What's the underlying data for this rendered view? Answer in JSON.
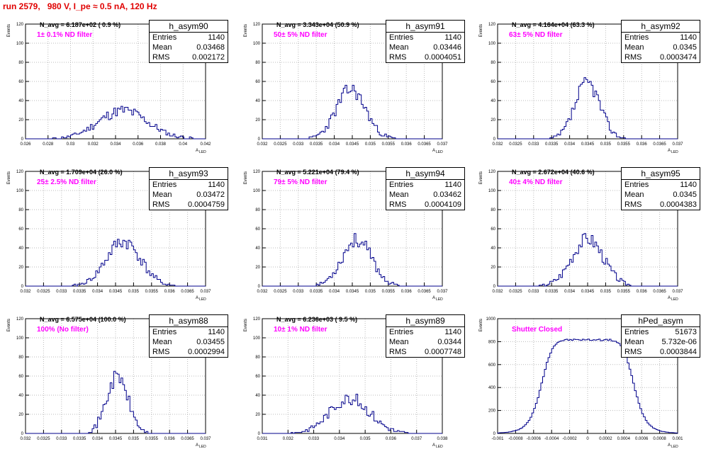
{
  "page_title": "run 2579,   980 V, I_pe ≈ 0.5 nA, 120 Hz",
  "colors": {
    "title": "#e00000",
    "histogram": "#00008b",
    "filter_text": "#ff00ff",
    "grid": "#bbbbbb"
  },
  "chart_data": [
    {
      "type": "histogram",
      "name": "h_asym90",
      "navg": "N_avg = 6.187e+02 ( 0.9 %)",
      "filter": "1± 0.1% ND filter",
      "entries": "1140",
      "mean": "0.03468",
      "rms": "0.002172",
      "xlim": [
        0.026,
        0.042
      ],
      "ylim": [
        0,
        120
      ],
      "xticks": [
        "0.026",
        "0.028",
        "0.03",
        "0.032",
        "0.034",
        "0.036",
        "0.038",
        "0.04",
        "0.042"
      ],
      "yticks": [
        "0",
        "20",
        "40",
        "60",
        "80",
        "100",
        "120"
      ],
      "ylabel": "Events",
      "xlabel": "A_LED",
      "grid": true,
      "mean_val": 0.03468,
      "rms_val": 0.002172,
      "peak": 38,
      "seed": 11
    },
    {
      "type": "histogram",
      "name": "h_asym91",
      "navg": "N_avg = 3.343e+04 (50.9 %)",
      "filter": "50± 5% ND filter",
      "entries": "1140",
      "mean": "0.03446",
      "rms": "0.0004051",
      "xlim": [
        0.032,
        0.037
      ],
      "ylim": [
        0,
        120
      ],
      "xticks": [
        "0.032",
        "0.0325",
        "0.033",
        "0.0335",
        "0.034",
        "0.0345",
        "0.035",
        "0.0355",
        "0.036",
        "0.0365",
        "0.037"
      ],
      "yticks": [
        "0",
        "20",
        "40",
        "60",
        "80",
        "100",
        "120"
      ],
      "ylabel": "Events",
      "xlabel": "A_LED",
      "grid": true,
      "mean_val": 0.03446,
      "rms_val": 0.0004051,
      "peak": 66,
      "seed": 23
    },
    {
      "type": "histogram",
      "name": "h_asym92",
      "navg": "N_avg = 4.164e+04 (63.3 %)",
      "filter": "63± 5% ND filter",
      "entries": "1140",
      "mean": "0.0345",
      "rms": "0.0003474",
      "xlim": [
        0.032,
        0.037
      ],
      "ylim": [
        0,
        120
      ],
      "xticks": [
        "0.032",
        "0.0325",
        "0.033",
        "0.0335",
        "0.034",
        "0.0345",
        "0.035",
        "0.0355",
        "0.036",
        "0.0365",
        "0.037"
      ],
      "yticks": [
        "0",
        "20",
        "40",
        "60",
        "80",
        "100",
        "120"
      ],
      "ylabel": "Events",
      "xlabel": "A_LED",
      "grid": true,
      "mean_val": 0.0345,
      "rms_val": 0.0003474,
      "peak": 75,
      "seed": 37
    },
    {
      "type": "histogram",
      "name": "h_asym93",
      "navg": "N_avg = 1.709e+04 (26.0 %)",
      "filter": "25± 2.5% ND filter",
      "entries": "1140",
      "mean": "0.03472",
      "rms": "0.0004759",
      "xlim": [
        0.032,
        0.037
      ],
      "ylim": [
        0,
        120
      ],
      "xticks": [
        "0.032",
        "0.0325",
        "0.033",
        "0.0335",
        "0.034",
        "0.0345",
        "0.035",
        "0.0355",
        "0.036",
        "0.0365",
        "0.037"
      ],
      "yticks": [
        "0",
        "20",
        "40",
        "60",
        "80",
        "100",
        "120"
      ],
      "ylabel": "Events",
      "xlabel": "A_LED",
      "grid": true,
      "mean_val": 0.03472,
      "rms_val": 0.0004759,
      "peak": 60,
      "seed": 41
    },
    {
      "type": "histogram",
      "name": "h_asym94",
      "navg": "N_avg = 5.221e+04 (79.4 %)",
      "filter": "79± 5% ND filter",
      "entries": "1140",
      "mean": "0.03462",
      "rms": "0.0004109",
      "xlim": [
        0.032,
        0.037
      ],
      "ylim": [
        0,
        120
      ],
      "xticks": [
        "0.032",
        "0.0325",
        "0.033",
        "0.0335",
        "0.034",
        "0.0345",
        "0.035",
        "0.0355",
        "0.036",
        "0.0365",
        "0.037"
      ],
      "yticks": [
        "0",
        "20",
        "40",
        "60",
        "80",
        "100",
        "120"
      ],
      "ylabel": "Events",
      "xlabel": "A_LED",
      "grid": true,
      "mean_val": 0.03462,
      "rms_val": 0.0004109,
      "peak": 62,
      "seed": 53
    },
    {
      "type": "histogram",
      "name": "h_asym95",
      "navg": "N_avg = 2.672e+04 (40.6 %)",
      "filter": "40± 4% ND filter",
      "entries": "1140",
      "mean": "0.0345",
      "rms": "0.0004383",
      "xlim": [
        0.032,
        0.037
      ],
      "ylim": [
        0,
        120
      ],
      "xticks": [
        "0.032",
        "0.0325",
        "0.033",
        "0.0335",
        "0.034",
        "0.0345",
        "0.035",
        "0.0355",
        "0.036",
        "0.0365",
        "0.037"
      ],
      "yticks": [
        "0",
        "20",
        "40",
        "60",
        "80",
        "100",
        "120"
      ],
      "ylabel": "Events",
      "xlabel": "A_LED",
      "grid": true,
      "mean_val": 0.0345,
      "rms_val": 0.0004383,
      "peak": 64,
      "seed": 67
    },
    {
      "type": "histogram",
      "name": "h_asym88",
      "navg": "N_avg = 6.575e+04 (100.0 %)",
      "filter": "100% (No filter)",
      "entries": "1140",
      "mean": "0.03455",
      "rms": "0.0002994",
      "xlim": [
        0.032,
        0.037
      ],
      "ylim": [
        0,
        120
      ],
      "xticks": [
        "0.032",
        "0.0325",
        "0.033",
        "0.0335",
        "0.034",
        "0.0345",
        "0.035",
        "0.0355",
        "0.036",
        "0.0365",
        "0.037"
      ],
      "yticks": [
        "0",
        "20",
        "40",
        "60",
        "80",
        "100",
        "120"
      ],
      "ylabel": "Events",
      "xlabel": "A_LED",
      "grid": true,
      "mean_val": 0.03455,
      "rms_val": 0.0002994,
      "peak": 76,
      "seed": 71
    },
    {
      "type": "histogram",
      "name": "h_asym89",
      "navg": "N_avg = 6.236e+03 ( 9.5 %)",
      "filter": "10± 1% ND filter",
      "entries": "1140",
      "mean": "0.0344",
      "rms": "0.0007748",
      "xlim": [
        0.031,
        0.038
      ],
      "ylim": [
        0,
        120
      ],
      "xticks": [
        "0.031",
        "0.032",
        "0.033",
        "0.034",
        "0.035",
        "0.036",
        "0.037",
        "0.038"
      ],
      "yticks": [
        "0",
        "20",
        "40",
        "60",
        "80",
        "100",
        "120"
      ],
      "ylabel": "Events",
      "xlabel": "A_LED",
      "grid": true,
      "mean_val": 0.0344,
      "rms_val": 0.0007748,
      "peak": 47,
      "seed": 83
    },
    {
      "type": "histogram",
      "name": "hPed_asym",
      "navg": "",
      "filter": "Shutter Closed",
      "entries": "51673",
      "mean": "5.732e-06",
      "rms": "0.0003844",
      "xlim": [
        -0.001,
        0.001
      ],
      "ylim": [
        0,
        1000
      ],
      "xticks": [
        "-0.001",
        "-0.0008",
        "-0.0006",
        "-0.0004",
        "-0.0002",
        "0",
        "0.0002",
        "0.0004",
        "0.0006",
        "0.0008",
        "0.001"
      ],
      "yticks": [
        "0",
        "200",
        "400",
        "600",
        "800",
        "1000"
      ],
      "ylabel": "Events",
      "xlabel": "A_LED",
      "grid": true,
      "mean_val": 0.0,
      "rms_val": 0.0003844,
      "peak": 960,
      "seed": 97,
      "shape": "flat"
    }
  ]
}
